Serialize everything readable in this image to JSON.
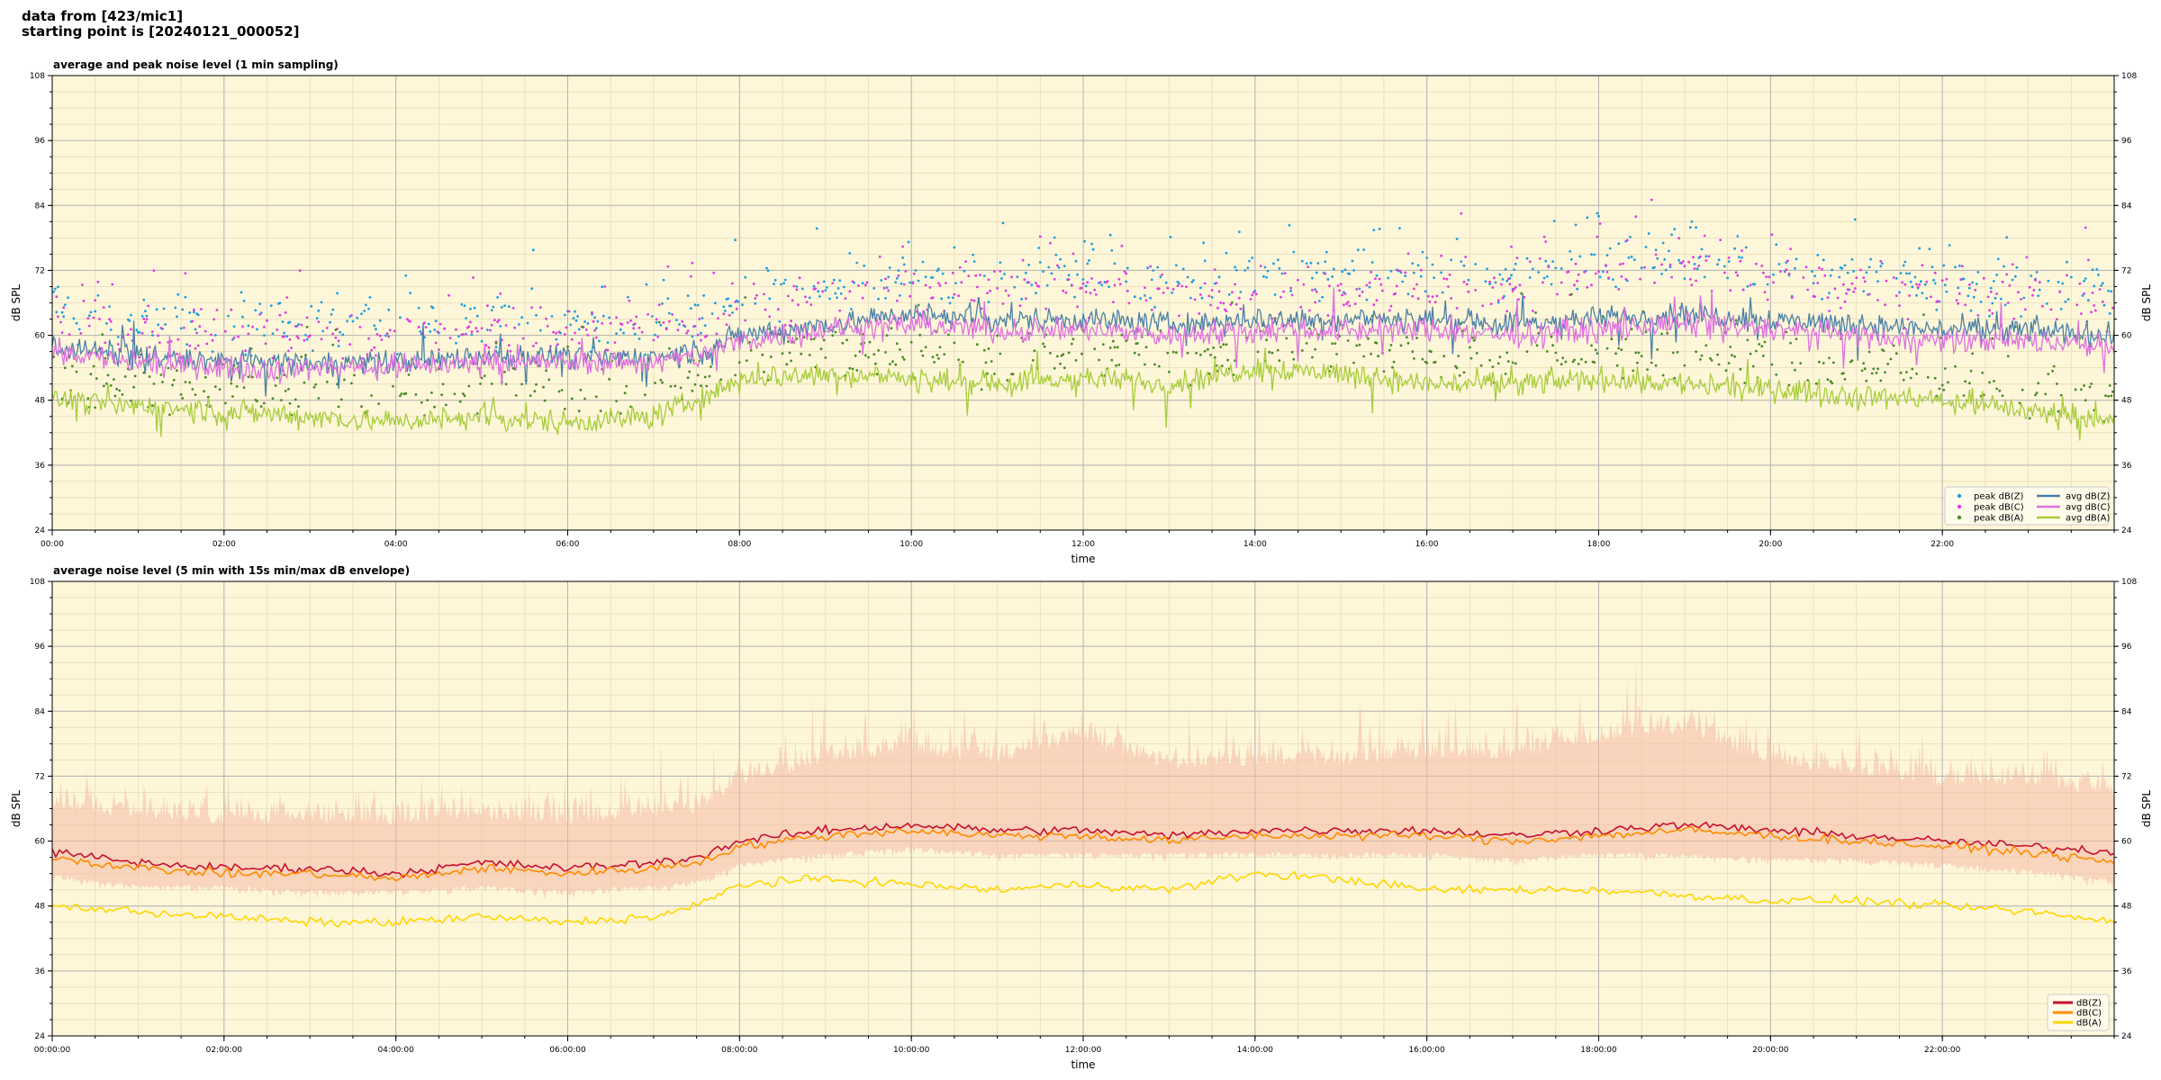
{
  "header": {
    "line1": "data from [423/mic1]",
    "line2": "starting point is [20240121_000052]"
  },
  "colors": {
    "background": "#fdf6d8",
    "major_grid": "#b4b4b4",
    "minor_grid": "#e6dcb8",
    "peak_z": "#1f9fe0",
    "peak_c": "#e03ce0",
    "peak_a": "#4a8a2a",
    "avg_z": "#4a80a8",
    "avg_c": "#e070e0",
    "avg_a": "#a8cc3c",
    "dbz": "#c8102e",
    "dbc": "#ff8c00",
    "dba": "#ffd700",
    "envelope": "#f4b9a6"
  },
  "chart_data": [
    {
      "type": "line",
      "title": "average and peak noise level (1 min sampling)",
      "xlabel": "time",
      "ylabel": "dB SPL",
      "xlim": [
        0,
        24
      ],
      "ylim": [
        24,
        108
      ],
      "yticks": [
        "24",
        "36",
        "48",
        "60",
        "72",
        "84",
        "96",
        "108"
      ],
      "xticks": [
        "00:00",
        "02:00",
        "04:00",
        "06:00",
        "08:00",
        "10:00",
        "12:00",
        "14:00",
        "16:00",
        "18:00",
        "20:00",
        "22:00"
      ],
      "grid": true,
      "legend_position": "bottom-right",
      "legend": [
        "peak dB(Z)",
        "peak dB(C)",
        "peak dB(A)",
        "avg dB(Z)",
        "avg dB(C)",
        "avg dB(A)"
      ],
      "series": [
        {
          "name": "avg dB(Z)",
          "style": "line",
          "x": [
            0,
            1,
            2,
            3,
            4,
            5,
            6,
            7,
            7.5,
            8,
            9,
            10,
            11,
            12,
            13,
            14,
            15,
            16,
            17,
            18,
            19,
            20,
            21,
            22,
            23,
            24
          ],
          "values": [
            58,
            56,
            55,
            55,
            55,
            56,
            56,
            56,
            57,
            60,
            62,
            64,
            63,
            63,
            62,
            63,
            63,
            63,
            62,
            63,
            64,
            63,
            62,
            61,
            61,
            60
          ]
        },
        {
          "name": "avg dB(C)",
          "style": "line",
          "x": [
            0,
            1,
            2,
            3,
            4,
            5,
            6,
            7,
            7.5,
            8,
            9,
            10,
            11,
            12,
            13,
            14,
            15,
            16,
            17,
            18,
            19,
            20,
            21,
            22,
            23,
            24
          ],
          "values": [
            57,
            55,
            54,
            54,
            54,
            55,
            55,
            55,
            56,
            59,
            61,
            62,
            61,
            61,
            60,
            61,
            61,
            61,
            60,
            61,
            62,
            61,
            60,
            59,
            59,
            58
          ]
        },
        {
          "name": "avg dB(A)",
          "style": "line",
          "x": [
            0,
            1,
            2,
            3,
            4,
            5,
            6,
            7,
            7.5,
            8,
            9,
            10,
            11,
            12,
            13,
            14,
            15,
            16,
            17,
            18,
            19,
            20,
            21,
            22,
            23,
            24
          ],
          "values": [
            48,
            47,
            46,
            45,
            44,
            45,
            44,
            45,
            48,
            52,
            53,
            52,
            51,
            52,
            51,
            54,
            53,
            51,
            51,
            52,
            51,
            50,
            49,
            48,
            46,
            44
          ]
        },
        {
          "name": "peak dB(Z)",
          "style": "points",
          "x": [
            0,
            1,
            2,
            3,
            4,
            5,
            6,
            7,
            7.5,
            8,
            9,
            10,
            11,
            12,
            13,
            14,
            15,
            16,
            17,
            18,
            19,
            20,
            21,
            22,
            23,
            24
          ],
          "values": [
            64,
            63,
            62,
            62,
            62,
            63,
            62,
            63,
            64,
            67,
            69,
            71,
            70,
            72,
            70,
            70,
            70,
            71,
            71,
            73,
            75,
            72,
            70,
            69,
            69,
            68
          ]
        },
        {
          "name": "peak dB(C)",
          "style": "points",
          "x": [
            0,
            1,
            2,
            3,
            4,
            5,
            6,
            7,
            7.5,
            8,
            9,
            10,
            11,
            12,
            13,
            14,
            15,
            16,
            17,
            18,
            19,
            20,
            21,
            22,
            23,
            24
          ],
          "values": [
            62,
            61,
            60,
            60,
            60,
            61,
            60,
            61,
            62,
            65,
            67,
            68,
            68,
            69,
            68,
            68,
            68,
            69,
            69,
            71,
            72,
            70,
            68,
            67,
            67,
            66
          ]
        },
        {
          "name": "peak dB(A)",
          "style": "points",
          "x": [
            0,
            1,
            2,
            3,
            4,
            5,
            6,
            7,
            7.5,
            8,
            9,
            10,
            11,
            12,
            13,
            14,
            15,
            16,
            17,
            18,
            19,
            20,
            21,
            22,
            23,
            24
          ],
          "values": [
            52,
            51,
            50,
            50,
            50,
            51,
            50,
            51,
            53,
            56,
            57,
            57,
            56,
            57,
            56,
            58,
            57,
            56,
            56,
            57,
            56,
            55,
            54,
            53,
            51,
            49
          ]
        }
      ]
    },
    {
      "type": "line",
      "title": "average noise level (5 min with 15s min/max dB envelope)",
      "xlabel": "time",
      "ylabel": "dB SPL",
      "xlim": [
        0,
        24
      ],
      "ylim": [
        24,
        108
      ],
      "yticks": [
        "24",
        "36",
        "48",
        "60",
        "72",
        "84",
        "96",
        "108"
      ],
      "xticks": [
        "00:00:00",
        "02:00:00",
        "04:00:00",
        "06:00:00",
        "08:00:00",
        "10:00:00",
        "12:00:00",
        "14:00:00",
        "16:00:00",
        "18:00:00",
        "20:00:00",
        "22:00:00"
      ],
      "grid": true,
      "legend_position": "bottom-right",
      "legend": [
        "dB(Z)",
        "dB(C)",
        "dB(A)"
      ],
      "series": [
        {
          "name": "dB(Z)",
          "style": "line",
          "x": [
            0,
            1,
            2,
            3,
            4,
            5,
            6,
            7,
            7.5,
            8,
            9,
            10,
            11,
            12,
            13,
            14,
            15,
            16,
            17,
            18,
            19,
            20,
            21,
            22,
            23,
            24
          ],
          "values": [
            58,
            56,
            55,
            55,
            54,
            56,
            55,
            56,
            57,
            60,
            62,
            63,
            62,
            62,
            61,
            62,
            62,
            62,
            61,
            62,
            63,
            62,
            61,
            60,
            59,
            58
          ]
        },
        {
          "name": "dB(C)",
          "style": "line",
          "x": [
            0,
            1,
            2,
            3,
            4,
            5,
            6,
            7,
            7.5,
            8,
            9,
            10,
            11,
            12,
            13,
            14,
            15,
            16,
            17,
            18,
            19,
            20,
            21,
            22,
            23,
            24
          ],
          "values": [
            57,
            55,
            54,
            54,
            53,
            55,
            54,
            55,
            56,
            59,
            61,
            62,
            61,
            61,
            60,
            61,
            61,
            61,
            60,
            61,
            62,
            61,
            60,
            59,
            58,
            56
          ]
        },
        {
          "name": "dB(A)",
          "style": "line",
          "x": [
            0,
            1,
            2,
            3,
            4,
            5,
            6,
            7,
            7.5,
            8,
            9,
            10,
            11,
            12,
            13,
            14,
            15,
            16,
            17,
            18,
            19,
            20,
            21,
            22,
            23,
            24
          ],
          "values": [
            48,
            47,
            46,
            45,
            45,
            46,
            45,
            46,
            48,
            52,
            53,
            52,
            51,
            52,
            51,
            54,
            53,
            51,
            51,
            51,
            50,
            49,
            49,
            48,
            47,
            45
          ]
        },
        {
          "name": "envelope max",
          "style": "band-upper",
          "x": [
            0,
            1,
            2,
            3,
            4,
            5,
            6,
            7,
            7.5,
            8,
            9,
            10,
            11,
            12,
            13,
            14,
            15,
            16,
            17,
            18,
            19,
            20,
            21,
            22,
            23,
            24
          ],
          "values": [
            66,
            64,
            63,
            63,
            63,
            64,
            63,
            64,
            65,
            70,
            74,
            76,
            74,
            78,
            73,
            74,
            74,
            75,
            75,
            78,
            80,
            74,
            72,
            70,
            70,
            68
          ]
        },
        {
          "name": "envelope min",
          "style": "band-lower",
          "x": [
            0,
            1,
            2,
            3,
            4,
            5,
            6,
            7,
            7.5,
            8,
            9,
            10,
            11,
            12,
            13,
            14,
            15,
            16,
            17,
            18,
            19,
            20,
            21,
            22,
            23,
            24
          ],
          "values": [
            54,
            52,
            52,
            51,
            51,
            52,
            51,
            52,
            53,
            56,
            58,
            59,
            58,
            58,
            58,
            58,
            58,
            58,
            57,
            58,
            58,
            57,
            57,
            56,
            55,
            53
          ]
        }
      ]
    }
  ]
}
